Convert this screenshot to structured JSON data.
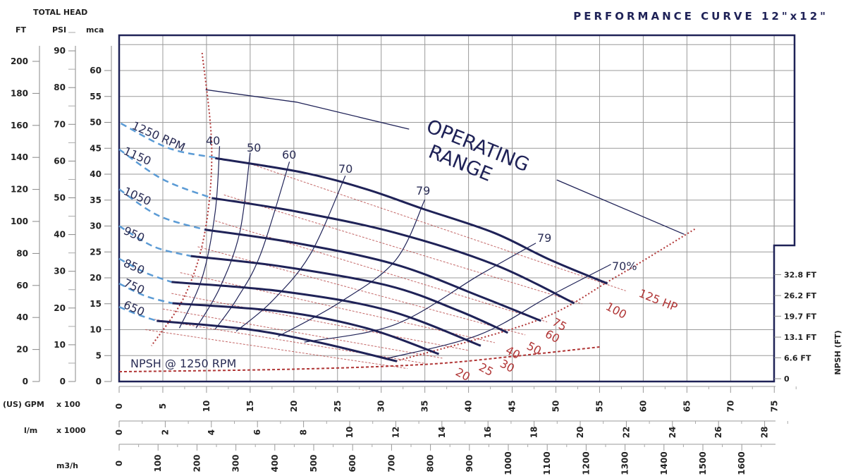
{
  "chart_data": {
    "type": "line",
    "title": "PERFORMANCE CURVE  12\"x12\"",
    "ylabel": "TOTAL HEAD",
    "y_axes": {
      "ft": {
        "label": "FT",
        "ticks": [
          0,
          20,
          40,
          60,
          80,
          100,
          120,
          140,
          160,
          180,
          200
        ]
      },
      "psi": {
        "label": "PSI",
        "ticks": [
          0,
          10,
          20,
          30,
          40,
          50,
          60,
          70,
          80,
          90
        ]
      },
      "mca": {
        "label": "mca",
        "ticks": [
          0,
          5,
          10,
          15,
          20,
          25,
          30,
          35,
          40,
          45,
          50,
          55,
          60
        ],
        "range": [
          0,
          65
        ]
      }
    },
    "npsh_axis": {
      "label": "NPSH (FT)",
      "ticks": [
        "0",
        "6.6 FT",
        "13.1 FT",
        "19.7 FT",
        "26.2 FT",
        "32.8 FT"
      ],
      "values": [
        0,
        6.6,
        13.1,
        19.7,
        26.2,
        32.8
      ]
    },
    "x_axes": {
      "gpm": {
        "label": "(US) GPM",
        "multiplier": "x 100",
        "ticks": [
          0,
          5,
          10,
          15,
          20,
          25,
          30,
          35,
          40,
          45,
          50,
          55,
          60,
          65,
          70,
          75
        ],
        "range": [
          0,
          75
        ]
      },
      "lm": {
        "label": "l/m",
        "multiplier": "x 1000",
        "ticks": [
          0,
          2,
          4,
          6,
          8,
          10,
          12,
          14,
          16,
          18,
          20,
          22,
          24,
          26,
          28
        ]
      },
      "m3h": {
        "label": "m3/h",
        "ticks": [
          0,
          100,
          200,
          300,
          400,
          500,
          600,
          700,
          800,
          900,
          1000,
          1100,
          1200,
          1300,
          1400,
          1500,
          1600
        ]
      }
    },
    "grid": true,
    "speed_curves": [
      {
        "name": "1250 RPM",
        "dashed": [
          [
            0.2,
            49.8
          ],
          [
            5.7,
            45
          ],
          [
            11,
            43.2
          ]
        ],
        "values": [
          [
            11,
            43.1
          ],
          [
            21.1,
            40.3
          ],
          [
            28.3,
            37.1
          ],
          [
            34.8,
            33.3
          ],
          [
            42.9,
            28.7
          ],
          [
            49.3,
            23.5
          ],
          [
            55.9,
            18.9
          ]
        ]
      },
      {
        "name": "1150",
        "dashed": [
          [
            0,
            44.8
          ],
          [
            5,
            39
          ],
          [
            10.6,
            35.4
          ]
        ],
        "values": [
          [
            10.6,
            35.4
          ],
          [
            20.3,
            32.8
          ],
          [
            31.6,
            28.7
          ],
          [
            42.9,
            22.6
          ],
          [
            52.1,
            15.1
          ]
        ]
      },
      {
        "name": "1050",
        "dashed": [
          [
            0,
            37.1
          ],
          [
            4.5,
            32
          ],
          [
            9.8,
            29.3
          ]
        ],
        "values": [
          [
            9.8,
            29.3
          ],
          [
            20.3,
            26.7
          ],
          [
            31.6,
            22.6
          ],
          [
            41.2,
            16.5
          ],
          [
            48.3,
            11.7
          ]
        ]
      },
      {
        "name": "950",
        "dashed": [
          [
            0,
            30
          ],
          [
            4,
            26
          ],
          [
            8.2,
            24.2
          ]
        ],
        "values": [
          [
            8.2,
            24.2
          ],
          [
            18.6,
            22.2
          ],
          [
            30.8,
            18.5
          ],
          [
            38.8,
            13.7
          ],
          [
            44.5,
            9.4
          ]
        ]
      },
      {
        "name": "850",
        "dashed": [
          [
            0,
            23.7
          ],
          [
            3,
            21
          ],
          [
            6,
            19.2
          ]
        ],
        "values": [
          [
            6,
            19.2
          ],
          [
            18.6,
            17.4
          ],
          [
            30.8,
            13.7
          ],
          [
            41.4,
            6.9
          ]
        ]
      },
      {
        "name": "750",
        "dashed": [
          [
            0,
            18.9
          ],
          [
            3,
            16.5
          ],
          [
            6.1,
            15.1
          ]
        ],
        "values": [
          [
            6.1,
            15.1
          ],
          [
            18.6,
            13.5
          ],
          [
            28.3,
            10.3
          ],
          [
            36.6,
            5.3
          ]
        ]
      },
      {
        "name": "650",
        "dashed": [
          [
            0,
            14.4
          ],
          [
            2,
            13
          ],
          [
            4.3,
            11.7
          ]
        ],
        "values": [
          [
            4.3,
            11.7
          ],
          [
            14.6,
            10.1
          ],
          [
            22.7,
            7.6
          ],
          [
            31.8,
            3.9
          ]
        ]
      }
    ],
    "efficiency_curves": [
      {
        "name": "40",
        "values": [
          [
            11.5,
            45.4
          ],
          [
            11,
            32.8
          ],
          [
            9.5,
            20
          ],
          [
            6.9,
            10.3
          ]
        ]
      },
      {
        "name": "50",
        "values": [
          [
            15,
            44.1
          ],
          [
            13.8,
            28.7
          ],
          [
            11.5,
            18
          ],
          [
            8.8,
            10.3
          ]
        ]
      },
      {
        "name": "60",
        "values": [
          [
            19.5,
            42.4
          ],
          [
            16.2,
            24.6
          ],
          [
            13.5,
            16
          ],
          [
            11,
            10.1
          ]
        ]
      },
      {
        "name": "70",
        "values": [
          [
            25.9,
            39.7
          ],
          [
            21.9,
            24.6
          ],
          [
            17.5,
            15.5
          ],
          [
            13.4,
            9.7
          ]
        ]
      },
      {
        "name": "79",
        "values": [
          [
            35,
            35.1
          ],
          [
            31.6,
            23.3
          ],
          [
            25.1,
            15.1
          ],
          [
            18.2,
            8.7
          ]
        ]
      },
      {
        "name": "79",
        "values": [
          [
            47.7,
            26.7
          ],
          [
            41.2,
            20.5
          ],
          [
            31.6,
            11
          ],
          [
            21.2,
            7.6
          ]
        ]
      },
      {
        "name": "70%",
        "values": [
          [
            56.3,
            22.6
          ],
          [
            49.3,
            16.5
          ],
          [
            41.2,
            9
          ],
          [
            30.8,
            4.5
          ]
        ]
      }
    ],
    "power_curves": [
      {
        "name": "125 HP",
        "values": [
          [
            15,
            42
          ],
          [
            58,
            17.5
          ]
        ]
      },
      {
        "name": "100",
        "values": [
          [
            12,
            36
          ],
          [
            53,
            15
          ]
        ]
      },
      {
        "name": "75",
        "values": [
          [
            11,
            31
          ],
          [
            49,
            11.5
          ]
        ]
      },
      {
        "name": "60",
        "values": [
          [
            9,
            26
          ],
          [
            46.5,
            9
          ]
        ]
      },
      {
        "name": "50",
        "values": [
          [
            7,
            21
          ],
          [
            43,
            7.5
          ]
        ]
      },
      {
        "name": "40",
        "values": [
          [
            6,
            17
          ],
          [
            40,
            6
          ]
        ]
      },
      {
        "name": "30",
        "values": [
          [
            5,
            14
          ],
          [
            37,
            4.5
          ]
        ]
      },
      {
        "name": "25",
        "values": [
          [
            4,
            12
          ],
          [
            35,
            3.5
          ]
        ]
      },
      {
        "name": "20",
        "values": [
          [
            3,
            10
          ],
          [
            33,
            2.5
          ]
        ]
      }
    ],
    "limit_left": [
      [
        9.5,
        63.4
      ],
      [
        10.6,
        45
      ],
      [
        9.8,
        28.7
      ],
      [
        7.5,
        16.5
      ],
      [
        3.7,
        6.9
      ]
    ],
    "limit_right": [
      [
        65.9,
        29.4
      ],
      [
        56.6,
        19.9
      ],
      [
        47.7,
        11.7
      ],
      [
        31.6,
        3.9
      ]
    ],
    "npsh_curve": {
      "name": "NPSH @ 1250 RPM",
      "values_ft": [
        [
          0,
          2.2
        ],
        [
          20,
          3
        ],
        [
          35,
          4.5
        ],
        [
          45,
          7
        ],
        [
          55,
          10
        ]
      ]
    },
    "operating_range": {
      "name": "OPERATING RANGE",
      "line1": "OPERATING",
      "line2": "RANGE",
      "values": [
        [
          9.9,
          56.3
        ],
        [
          20.3,
          53.9
        ],
        [
          33.2,
          48.7
        ]
      ],
      "values2": [
        [
          50.1,
          38.9
        ],
        [
          64.7,
          28.4
        ]
      ]
    },
    "colors": {
      "head": "#1f2257",
      "power": "#b03535",
      "dashed_speed": "#5b9bd5",
      "grid": "#9a9a9a"
    }
  }
}
